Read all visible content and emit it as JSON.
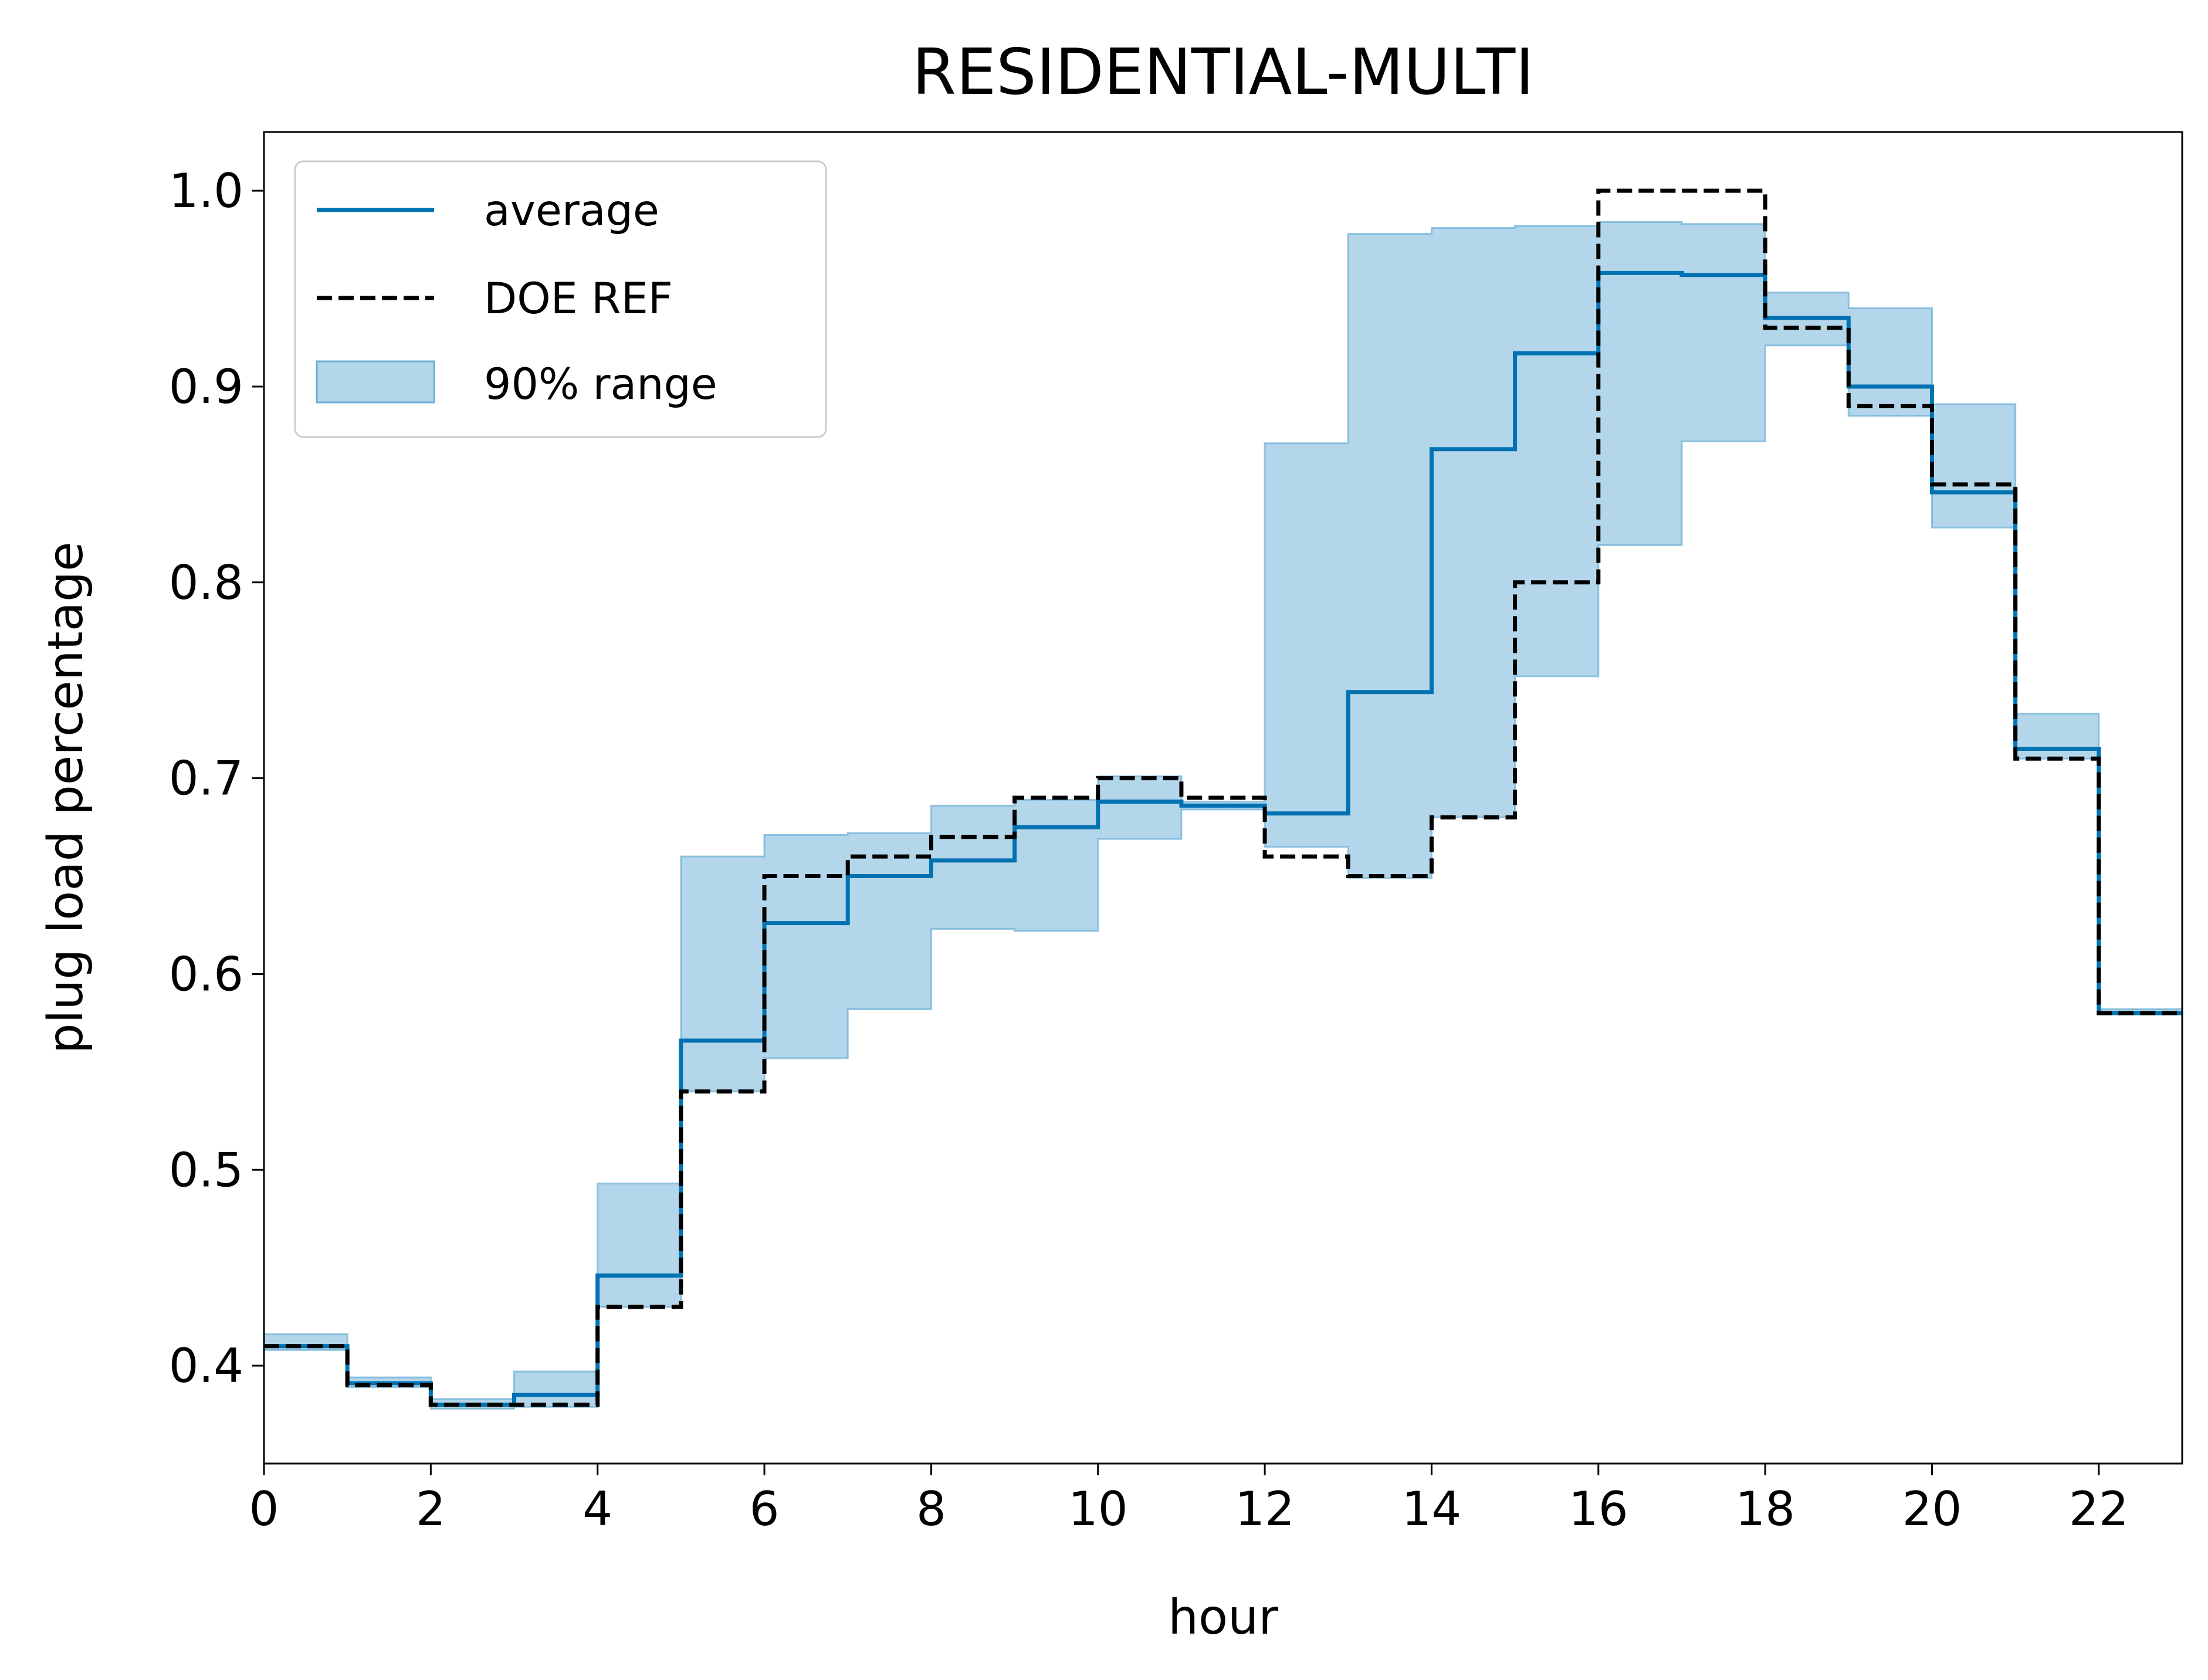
{
  "chart_data": {
    "type": "line",
    "title": "RESIDENTIAL-MULTI",
    "xlabel": "hour",
    "ylabel": "plug load percentage",
    "xlim": [
      0,
      23
    ],
    "ylim": [
      0.35,
      1.03
    ],
    "xticks": [
      0,
      2,
      4,
      6,
      8,
      10,
      12,
      14,
      16,
      18,
      20,
      22
    ],
    "yticks": [
      0.4,
      0.5,
      0.6,
      0.7,
      0.8,
      0.9,
      1.0
    ],
    "grid": false,
    "legend_position": "top-left",
    "step": "post",
    "x": [
      0,
      1,
      2,
      3,
      4,
      5,
      6,
      7,
      8,
      9,
      10,
      11,
      12,
      13,
      14,
      15,
      16,
      17,
      18,
      19,
      20,
      21,
      22
    ],
    "series": [
      {
        "name": "average",
        "style": "solid",
        "color": "#0072b2",
        "values": [
          0.41,
          0.391,
          0.38,
          0.385,
          0.446,
          0.566,
          0.626,
          0.65,
          0.658,
          0.675,
          0.688,
          0.686,
          0.682,
          0.744,
          0.868,
          0.917,
          0.958,
          0.957,
          0.935,
          0.9,
          0.846,
          0.715,
          0.58
        ]
      },
      {
        "name": "DOE REF",
        "style": "dashed",
        "color": "#000000",
        "values": [
          0.41,
          0.39,
          0.38,
          0.38,
          0.43,
          0.54,
          0.65,
          0.66,
          0.67,
          0.69,
          0.7,
          0.69,
          0.66,
          0.65,
          0.68,
          0.8,
          1.0,
          1.0,
          0.93,
          0.89,
          0.85,
          0.71,
          0.58
        ]
      }
    ],
    "band": {
      "name": "90% range",
      "color": "#6aaed6",
      "lower": [
        0.408,
        0.389,
        0.378,
        0.379,
        0.43,
        0.54,
        0.557,
        0.582,
        0.623,
        0.622,
        0.669,
        0.684,
        0.665,
        0.649,
        0.68,
        0.752,
        0.819,
        0.872,
        0.921,
        0.885,
        0.828,
        0.71,
        0.58
      ],
      "upper": [
        0.416,
        0.394,
        0.383,
        0.397,
        0.493,
        0.66,
        0.671,
        0.672,
        0.686,
        0.689,
        0.701,
        0.688,
        0.871,
        0.978,
        0.981,
        0.982,
        0.984,
        0.983,
        0.948,
        0.94,
        0.891,
        0.733,
        0.582
      ]
    }
  }
}
